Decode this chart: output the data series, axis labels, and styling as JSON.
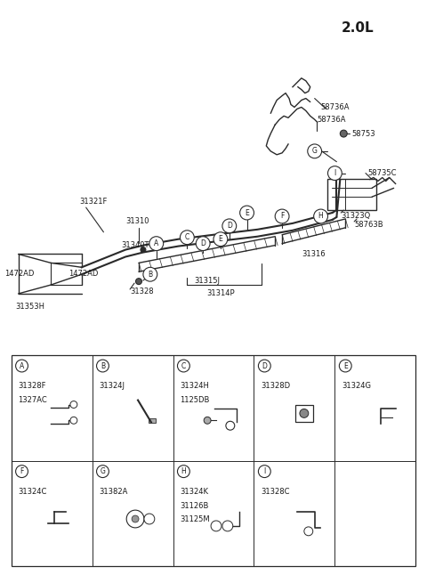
{
  "title": "2.0L",
  "bg_color": "#ffffff",
  "line_color": "#2a2a2a",
  "text_color": "#1a1a1a",
  "fig_width": 4.8,
  "fig_height": 6.55,
  "dpi": 100,
  "grid_cells": [
    {
      "letter": "A",
      "col": 0,
      "row": 0,
      "parts": [
        "31328F",
        "1327AC"
      ]
    },
    {
      "letter": "B",
      "col": 1,
      "row": 0,
      "parts": [
        "31324J"
      ]
    },
    {
      "letter": "C",
      "col": 2,
      "row": 0,
      "parts": [
        "31324H",
        "1125DB"
      ]
    },
    {
      "letter": "D",
      "col": 3,
      "row": 0,
      "parts": [
        "31328D"
      ]
    },
    {
      "letter": "E",
      "col": 4,
      "row": 0,
      "parts": [
        "31324G"
      ]
    },
    {
      "letter": "F",
      "col": 0,
      "row": 1,
      "parts": [
        "31324C"
      ]
    },
    {
      "letter": "G",
      "col": 1,
      "row": 1,
      "parts": [
        "31382A"
      ]
    },
    {
      "letter": "H",
      "col": 2,
      "row": 1,
      "parts": [
        "31324K",
        "31126B",
        "31125M"
      ]
    },
    {
      "letter": "I",
      "col": 3,
      "row": 1,
      "parts": [
        "31328C"
      ]
    }
  ]
}
